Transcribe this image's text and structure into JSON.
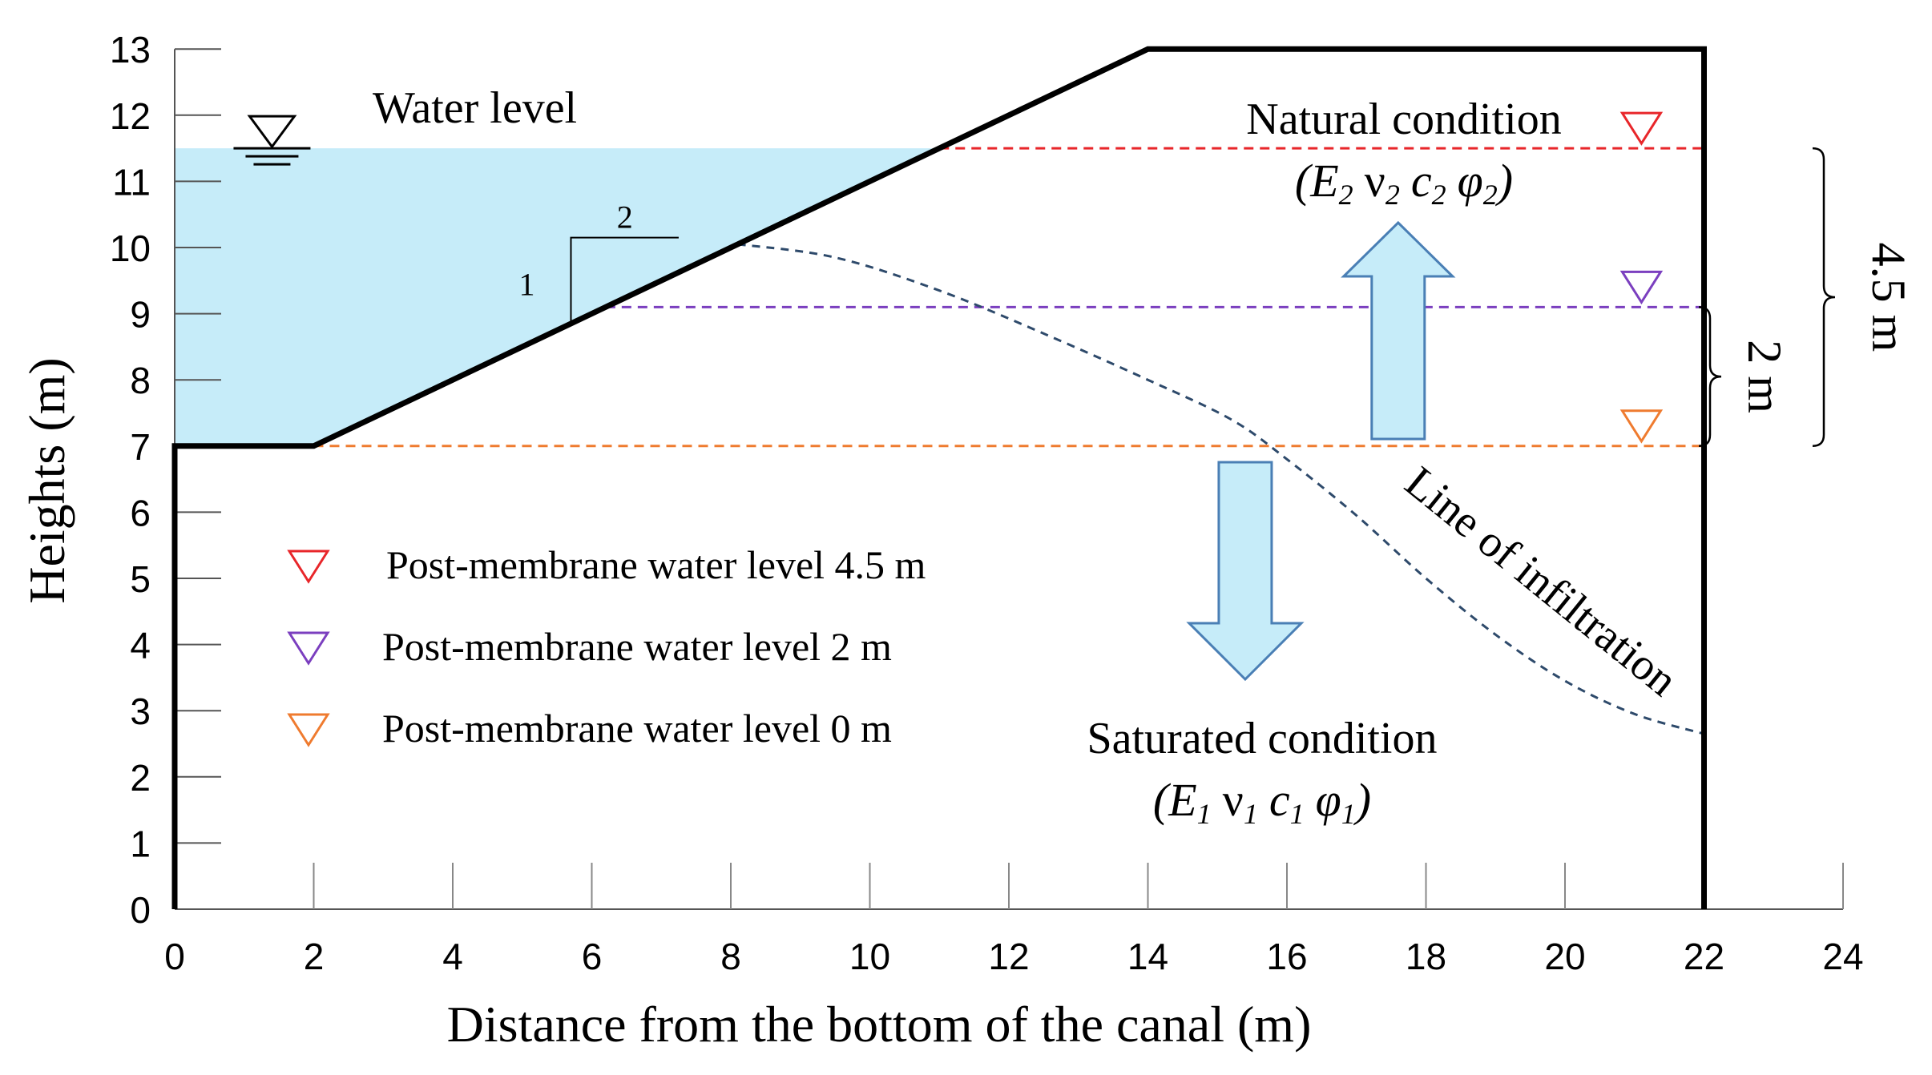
{
  "chart_data": {
    "type": "diagram",
    "title": "",
    "xlabel": "Distance from the bottom of the canal (m)",
    "ylabel": "Heights (m)",
    "xlim": [
      0,
      24
    ],
    "ylim": [
      0,
      13
    ],
    "x_ticks": [
      "0",
      "2",
      "4",
      "6",
      "8",
      "10",
      "12",
      "14",
      "16",
      "18",
      "20",
      "22",
      "24"
    ],
    "y_ticks": [
      "0",
      "1",
      "2",
      "3",
      "4",
      "5",
      "6",
      "7",
      "8",
      "9",
      "10",
      "11",
      "12",
      "13"
    ],
    "embankment_profile": [
      [
        0,
        0
      ],
      [
        0,
        7
      ],
      [
        2,
        7
      ],
      [
        14,
        13
      ],
      [
        22,
        13
      ],
      [
        22,
        0
      ]
    ],
    "slope_ratio": {
      "rise": "1",
      "run": "2"
    },
    "water_level": {
      "label": "Water level",
      "height_m": 11.5,
      "color": "#c6ecf9"
    },
    "post_membrane_levels": [
      {
        "label": "Post-membrane water level 4.5 m",
        "height_m": 11.5,
        "color": "#e8262a"
      },
      {
        "label": "Post-membrane water level 2 m",
        "height_m": 9.1,
        "color": "#7b3fbf"
      },
      {
        "label": "Post-membrane water level 0 m",
        "height_m": 7.0,
        "color": "#ef7b2f"
      }
    ],
    "infiltration_line": {
      "label": "Line of infiltration",
      "points": [
        [
          8.1,
          10.05
        ],
        [
          9.5,
          9.85
        ],
        [
          11,
          9.35
        ],
        [
          12.5,
          8.7
        ],
        [
          14,
          8.0
        ],
        [
          15.2,
          7.4
        ],
        [
          16,
          6.8
        ],
        [
          17,
          5.95
        ],
        [
          18,
          5.0
        ],
        [
          19,
          4.15
        ],
        [
          20,
          3.45
        ],
        [
          21,
          2.95
        ],
        [
          22,
          2.65
        ]
      ],
      "color": "#2e4a6b"
    },
    "regions": {
      "natural": {
        "label": "Natural condition",
        "params": [
          "E",
          "2",
          "ν",
          "2",
          "c",
          "2",
          "φ",
          "2"
        ]
      },
      "saturated": {
        "label": "Saturated condition",
        "params": [
          "E",
          "1",
          "ν",
          "1",
          "c",
          "1",
          "φ",
          "1"
        ]
      }
    },
    "dimensions": [
      {
        "label": "4.5 m",
        "from_m": 7.0,
        "to_m": 11.5
      },
      {
        "label": "2 m",
        "from_m": 7.0,
        "to_m": 9.1
      }
    ],
    "arrow_color": "#c6ecf9",
    "arrow_stroke": "#4a7fb5"
  }
}
